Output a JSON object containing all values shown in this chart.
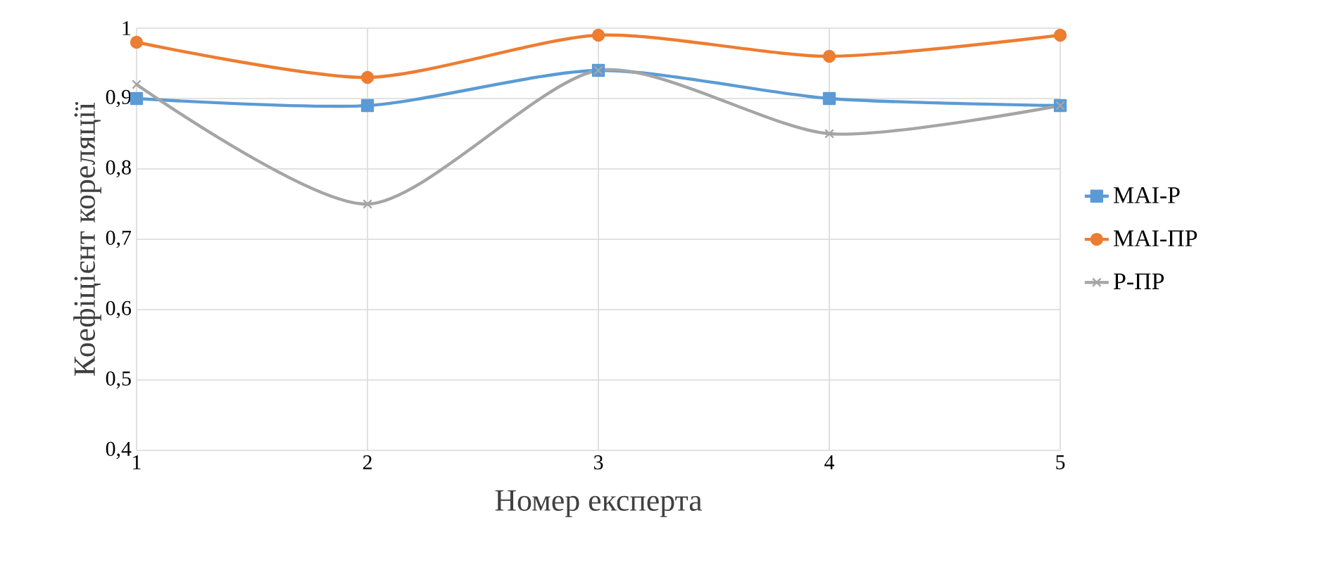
{
  "chart_data": {
    "type": "line",
    "xlabel": "Номер експерта",
    "ylabel": "Коефіцієнт кореляції",
    "x": [
      1,
      2,
      3,
      4,
      5
    ],
    "xlim": [
      1,
      5
    ],
    "xticks": [
      1,
      2,
      3,
      4,
      5
    ],
    "ylim": [
      0.4,
      1
    ],
    "yticks": [
      {
        "value": 0.4,
        "label": "0,4"
      },
      {
        "value": 0.5,
        "label": "0,5"
      },
      {
        "value": 0.6,
        "label": "0,6"
      },
      {
        "value": 0.7,
        "label": "0,7"
      },
      {
        "value": 0.8,
        "label": "0,8"
      },
      {
        "value": 0.9,
        "label": "0,9"
      },
      1
    ],
    "grid": true,
    "legend": "right",
    "line_style": "solid",
    "series": [
      {
        "name": "MAI-P",
        "color": "#5b9bd5",
        "marker": "square",
        "values": [
          0.9,
          0.89,
          0.94,
          0.9,
          0.89
        ]
      },
      {
        "name": "MAI-ПР",
        "color": "#ed7d31",
        "marker": "circle",
        "values": [
          0.98,
          0.93,
          0.99,
          0.96,
          0.99
        ]
      },
      {
        "name": "P-ПР",
        "color": "#a5a5a5",
        "marker": "cross",
        "values": [
          0.92,
          0.75,
          0.94,
          0.85,
          0.89
        ]
      }
    ]
  }
}
